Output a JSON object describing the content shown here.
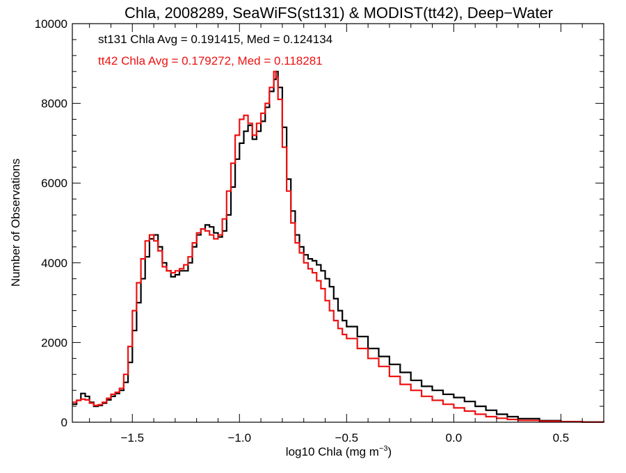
{
  "chart_data": {
    "type": "line",
    "title": "Chla, 2008289, SeaWiFS(st131) & MODIST(tt42), Deep−Water",
    "xlabel_main": "log10 Chla (mg m",
    "xlabel_sup": "−3",
    "xlabel_close": ")",
    "ylabel": "Number of Observations",
    "xlim": [
      -1.78,
      0.7
    ],
    "ylim": [
      0,
      10000
    ],
    "xticks": [
      -1.5,
      -1.0,
      -0.5,
      0.0,
      0.5
    ],
    "xtick_labels": [
      "−1.5",
      "−1.0",
      "−0.5",
      "0.0",
      "0.5"
    ],
    "yticks": [
      0,
      2000,
      4000,
      6000,
      8000,
      10000
    ],
    "ytick_labels": [
      "0",
      "2000",
      "4000",
      "6000",
      "8000",
      "10000"
    ],
    "grid": false,
    "annotations": [
      {
        "text": "st131 Chla Avg = 0.191415, Med = 0.124134",
        "color": "#000000"
      },
      {
        "text": "tt42 Chla Avg = 0.179272, Med = 0.118281",
        "color": "#ee1111"
      }
    ],
    "series": [
      {
        "color": "#000000",
        "x": [
          -1.78,
          -1.76,
          -1.74,
          -1.72,
          -1.7,
          -1.68,
          -1.66,
          -1.64,
          -1.62,
          -1.6,
          -1.58,
          -1.56,
          -1.54,
          -1.52,
          -1.5,
          -1.48,
          -1.46,
          -1.44,
          -1.42,
          -1.4,
          -1.38,
          -1.36,
          -1.34,
          -1.32,
          -1.3,
          -1.28,
          -1.26,
          -1.24,
          -1.22,
          -1.2,
          -1.18,
          -1.16,
          -1.14,
          -1.12,
          -1.1,
          -1.08,
          -1.06,
          -1.04,
          -1.02,
          -1.0,
          -0.98,
          -0.96,
          -0.94,
          -0.92,
          -0.9,
          -0.88,
          -0.86,
          -0.84,
          -0.83,
          -0.82,
          -0.8,
          -0.78,
          -0.76,
          -0.74,
          -0.72,
          -0.7,
          -0.68,
          -0.66,
          -0.64,
          -0.62,
          -0.6,
          -0.58,
          -0.56,
          -0.54,
          -0.52,
          -0.5,
          -0.45,
          -0.4,
          -0.35,
          -0.3,
          -0.25,
          -0.2,
          -0.15,
          -0.1,
          -0.05,
          0.0,
          0.05,
          0.1,
          0.15,
          0.2,
          0.25,
          0.3,
          0.4,
          0.5,
          0.6,
          0.7
        ],
        "y": [
          450,
          550,
          720,
          650,
          500,
          400,
          420,
          480,
          560,
          650,
          720,
          800,
          1000,
          1500,
          2300,
          3000,
          3600,
          4150,
          4600,
          4700,
          4400,
          4000,
          3800,
          3650,
          3700,
          3800,
          3800,
          4000,
          4400,
          4700,
          4850,
          4950,
          4900,
          4750,
          4650,
          4800,
          5200,
          5900,
          6600,
          7000,
          7300,
          7450,
          7100,
          7300,
          7550,
          7900,
          8300,
          8600,
          8800,
          8400,
          7400,
          6100,
          5300,
          4700,
          4400,
          4200,
          4100,
          4050,
          3950,
          3800,
          3600,
          3400,
          3100,
          2800,
          2550,
          2400,
          2150,
          1850,
          1650,
          1450,
          1250,
          1050,
          900,
          800,
          700,
          620,
          520,
          400,
          300,
          200,
          140,
          90,
          40,
          15,
          5,
          0
        ]
      },
      {
        "color": "#ee1111",
        "x": [
          -1.78,
          -1.76,
          -1.74,
          -1.72,
          -1.7,
          -1.68,
          -1.66,
          -1.64,
          -1.62,
          -1.6,
          -1.58,
          -1.56,
          -1.54,
          -1.52,
          -1.5,
          -1.48,
          -1.46,
          -1.44,
          -1.42,
          -1.4,
          -1.38,
          -1.36,
          -1.34,
          -1.32,
          -1.3,
          -1.28,
          -1.26,
          -1.24,
          -1.22,
          -1.2,
          -1.18,
          -1.16,
          -1.14,
          -1.12,
          -1.1,
          -1.08,
          -1.06,
          -1.04,
          -1.02,
          -1.0,
          -0.98,
          -0.96,
          -0.94,
          -0.92,
          -0.9,
          -0.88,
          -0.86,
          -0.84,
          -0.83,
          -0.82,
          -0.8,
          -0.78,
          -0.76,
          -0.74,
          -0.72,
          -0.7,
          -0.68,
          -0.66,
          -0.64,
          -0.62,
          -0.6,
          -0.58,
          -0.56,
          -0.54,
          -0.52,
          -0.5,
          -0.45,
          -0.4,
          -0.35,
          -0.3,
          -0.25,
          -0.2,
          -0.15,
          -0.1,
          -0.05,
          0.0,
          0.05,
          0.1,
          0.15,
          0.2,
          0.25,
          0.3,
          0.4,
          0.5,
          0.6,
          0.7
        ],
        "y": [
          500,
          550,
          580,
          560,
          480,
          420,
          440,
          500,
          600,
          700,
          750,
          850,
          1200,
          1900,
          2800,
          3500,
          4100,
          4550,
          4700,
          4550,
          4300,
          3900,
          3800,
          3750,
          3800,
          3850,
          3950,
          4150,
          4500,
          4750,
          4850,
          4800,
          4700,
          4600,
          4700,
          5100,
          5800,
          6500,
          7200,
          7600,
          7700,
          7500,
          7200,
          7500,
          7750,
          8000,
          8400,
          8800,
          8650,
          8100,
          6900,
          5800,
          5000,
          4500,
          4250,
          4000,
          3850,
          3750,
          3550,
          3350,
          3050,
          2800,
          2550,
          2350,
          2200,
          2100,
          1850,
          1600,
          1400,
          1150,
          950,
          800,
          650,
          550,
          450,
          360,
          280,
          200,
          140,
          100,
          70,
          45,
          25,
          10,
          3,
          0
        ]
      }
    ]
  }
}
